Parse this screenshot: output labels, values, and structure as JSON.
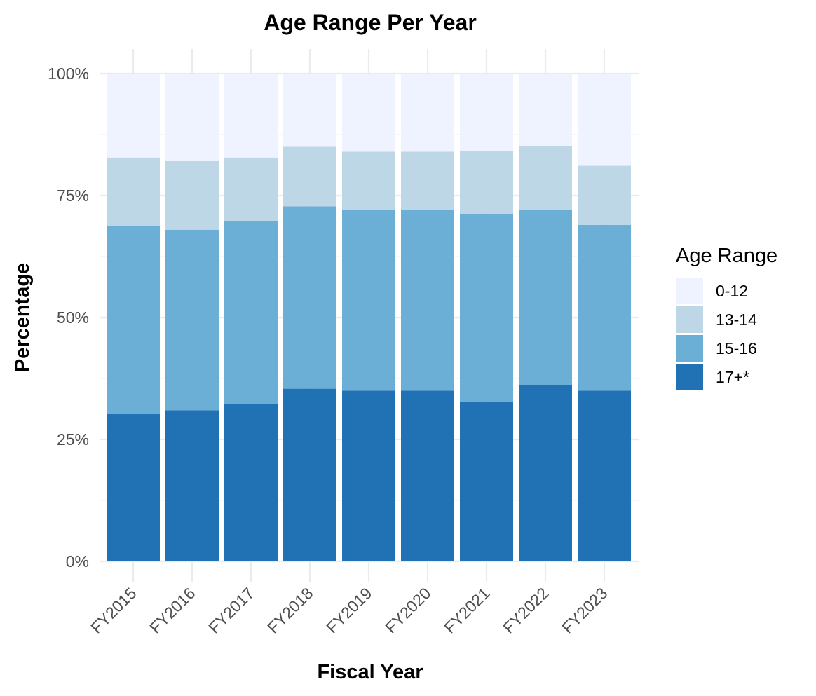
{
  "chart_data": {
    "type": "bar",
    "stacked": true,
    "title": "Age Range Per Year",
    "xlabel": "Fiscal Year",
    "ylabel": "Percentage",
    "ylim": [
      0,
      100
    ],
    "y_ticks": [
      "0%",
      "25%",
      "50%",
      "75%",
      "100%"
    ],
    "y_tick_values": [
      0,
      25,
      50,
      75,
      100
    ],
    "grid": true,
    "legend": {
      "title": "Age Range",
      "placement": "right"
    },
    "categories": [
      "FY2015",
      "FY2016",
      "FY2017",
      "FY2018",
      "FY2019",
      "FY2020",
      "FY2021",
      "FY2022",
      "FY2023"
    ],
    "series": [
      {
        "name": "17+*",
        "color": "#2171b5",
        "values": [
          30.3,
          31.0,
          32.3,
          35.4,
          35.0,
          35.0,
          32.8,
          36.1,
          35.0
        ]
      },
      {
        "name": "15-16",
        "color": "#6baed6",
        "values": [
          38.4,
          37.0,
          37.4,
          37.4,
          37.0,
          37.0,
          38.5,
          35.9,
          34.0
        ]
      },
      {
        "name": "13-14",
        "color": "#bdd7e7",
        "values": [
          14.1,
          14.1,
          13.1,
          12.2,
          12.0,
          12.0,
          12.9,
          13.1,
          12.1
        ]
      },
      {
        "name": "0-12",
        "color": "#eff3ff",
        "values": [
          17.2,
          17.9,
          17.2,
          15.0,
          16.0,
          16.0,
          15.8,
          14.9,
          18.9
        ]
      }
    ],
    "legend_order": [
      "0-12",
      "13-14",
      "15-16",
      "17+*"
    ]
  }
}
